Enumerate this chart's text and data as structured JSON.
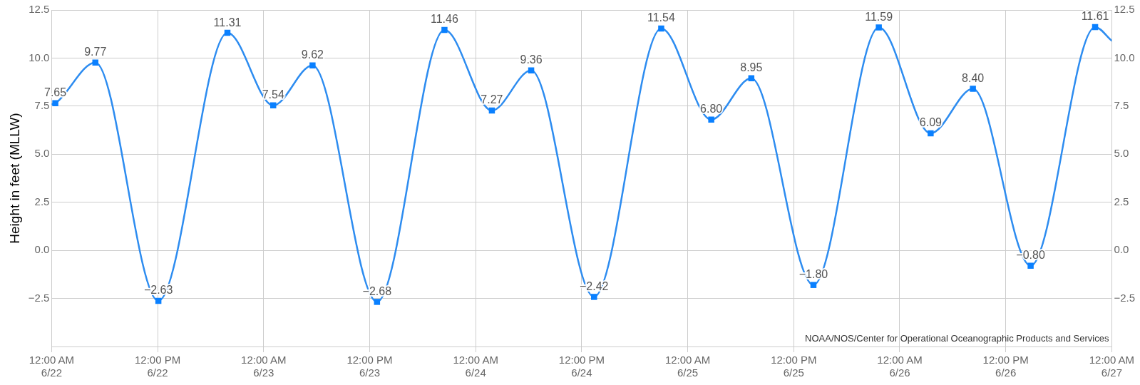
{
  "chart_data": {
    "type": "line",
    "ylabel": "Height in feet (MLLW)",
    "series": [
      {
        "type": "line",
        "color": "#2d8cf0",
        "marker": "none",
        "line_style": "solid",
        "x": [
          "--06-22T00:00",
          "--06-22T00:25",
          "--06-22T04:57",
          "--06-22T12:05",
          "--06-22T19:54",
          "--06-23T01:05",
          "--06-23T05:32",
          "--06-23T12:50",
          "--06-23T20:28",
          "--06-24T01:50",
          "--06-24T06:17",
          "--06-24T13:24",
          "--06-24T21:00",
          "--06-25T02:40",
          "--06-25T07:12",
          "--06-25T14:14",
          "--06-25T21:38",
          "--06-26T03:30",
          "--06-26T08:17",
          "--06-26T14:49",
          "--06-26T22:07",
          "--06-27T00:00"
        ],
        "values": [
          7.6,
          7.65,
          9.77,
          -2.63,
          11.31,
          7.54,
          9.62,
          -2.68,
          11.46,
          7.27,
          9.36,
          -2.42,
          11.54,
          6.8,
          8.95,
          -1.8,
          11.59,
          6.09,
          8.4,
          -0.8,
          11.61,
          10.9
        ]
      },
      {
        "type": "scatter",
        "color": "#0a80ff",
        "marker": "square",
        "x": [
          "--06-22T00:25",
          "--06-22T04:57",
          "--06-22T12:05",
          "--06-22T19:54",
          "--06-23T01:05",
          "--06-23T05:32",
          "--06-23T12:50",
          "--06-23T20:28",
          "--06-24T01:50",
          "--06-24T06:17",
          "--06-24T13:24",
          "--06-24T21:00",
          "--06-25T02:40",
          "--06-25T07:12",
          "--06-25T14:14",
          "--06-25T21:38",
          "--06-26T03:30",
          "--06-26T08:17",
          "--06-26T14:49",
          "--06-26T22:07"
        ],
        "values": [
          7.65,
          9.77,
          -2.63,
          11.31,
          7.54,
          9.62,
          -2.68,
          11.46,
          7.27,
          9.36,
          -2.42,
          11.54,
          6.8,
          8.95,
          -1.8,
          11.59,
          6.09,
          8.4,
          -0.8,
          11.61
        ],
        "value_labels": [
          "7.65",
          "9.77",
          "−2.63",
          "11.31",
          "7.54",
          "9.62",
          "−2.68",
          "11.46",
          "7.27",
          "9.36",
          "−2.42",
          "11.54",
          "6.80",
          "8.95",
          "−1.80",
          "11.59",
          "6.09",
          "8.40",
          "−0.80",
          "11.61"
        ]
      }
    ],
    "xlim": [
      "--06-22T00:00",
      "--06-27T00:00"
    ],
    "xticks": [
      {
        "value": "--06-22T00:00",
        "label": "12:00 AM\n6/22"
      },
      {
        "value": "--06-22T12:00",
        "label": "12:00 PM\n6/22"
      },
      {
        "value": "--06-23T00:00",
        "label": "12:00 AM\n6/23"
      },
      {
        "value": "--06-23T12:00",
        "label": "12:00 PM\n6/23"
      },
      {
        "value": "--06-24T00:00",
        "label": "12:00 AM\n6/24"
      },
      {
        "value": "--06-24T12:00",
        "label": "12:00 PM\n6/24"
      },
      {
        "value": "--06-25T00:00",
        "label": "12:00 AM\n6/25"
      },
      {
        "value": "--06-25T12:00",
        "label": "12:00 PM\n6/25"
      },
      {
        "value": "--06-26T00:00",
        "label": "12:00 AM\n6/26"
      },
      {
        "value": "--06-26T12:00",
        "label": "12:00 PM\n6/26"
      },
      {
        "value": "--06-27T00:00",
        "label": "12:00 AM\n6/27"
      }
    ],
    "ylim": [
      -5,
      12.5
    ],
    "yticks": [
      {
        "value": -2.5,
        "label": "−2.5"
      },
      {
        "value": 0,
        "label": "0.0"
      },
      {
        "value": 2.5,
        "label": "2.5"
      },
      {
        "value": 5,
        "label": "5.0"
      },
      {
        "value": 7.5,
        "label": "7.5"
      },
      {
        "value": 10,
        "label": "10.0"
      },
      {
        "value": 12.5,
        "label": "12.5"
      }
    ],
    "y2lim": [
      -5,
      12.5
    ],
    "y2ticks": [
      {
        "value": -2.5,
        "label": "−2.5"
      },
      {
        "value": 0,
        "label": "0.0"
      },
      {
        "value": 2.5,
        "label": "2.5"
      },
      {
        "value": 5,
        "label": "5.0"
      },
      {
        "value": 7.5,
        "label": "7.5"
      },
      {
        "value": 10,
        "label": "10.0"
      },
      {
        "value": 12.5,
        "label": "12.5"
      }
    ],
    "grid": true,
    "legend": false,
    "annotations": [
      "NOAA/NOS/Center for Operational Oceanographic Products and Services"
    ]
  }
}
